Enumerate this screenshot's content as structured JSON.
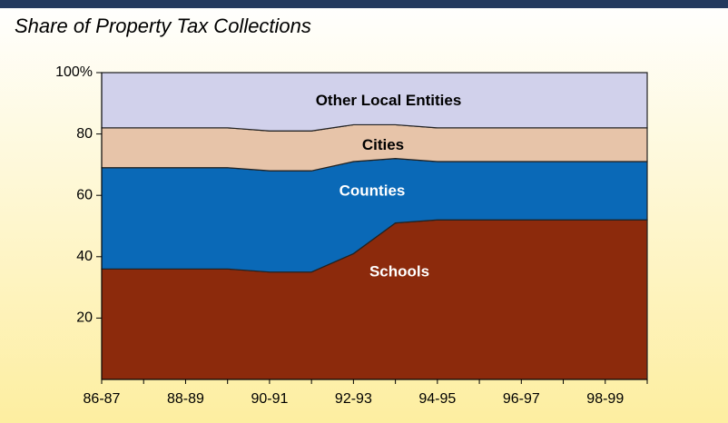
{
  "chart_data": {
    "type": "stacked_area",
    "title": "Share of Property Tax Collections",
    "categories": [
      "86-87",
      null,
      "88-89",
      null,
      "90-91",
      null,
      "92-93",
      null,
      "94-95",
      null,
      "96-97",
      null,
      "98-99",
      null
    ],
    "series": [
      {
        "name": "Schools",
        "color": "#8c2a0c",
        "label_color": "#ffffff",
        "values": [
          36,
          36,
          36,
          36,
          35,
          35,
          41,
          51,
          52,
          52,
          52,
          52,
          52,
          52
        ]
      },
      {
        "name": "Counties",
        "color": "#0a69b7",
        "label_color": "#ffffff",
        "values": [
          33,
          33,
          33,
          33,
          33,
          33,
          30,
          21,
          19,
          19,
          19,
          19,
          19,
          19
        ]
      },
      {
        "name": "Cities",
        "color": "#e7c4a9",
        "label_color": "#000000",
        "values": [
          13,
          13,
          13,
          13,
          13,
          13,
          12,
          11,
          11,
          11,
          11,
          11,
          11,
          11
        ]
      },
      {
        "name": "Other Local Entities",
        "color": "#d1d1eb",
        "label_color": "#000000",
        "values": [
          18,
          18,
          18,
          18,
          19,
          19,
          17,
          17,
          18,
          18,
          18,
          18,
          18,
          18
        ]
      }
    ],
    "ylim": [
      0,
      100
    ],
    "yticks": [
      20,
      40,
      60,
      80,
      {
        "value": 100,
        "label": "100%"
      }
    ]
  }
}
